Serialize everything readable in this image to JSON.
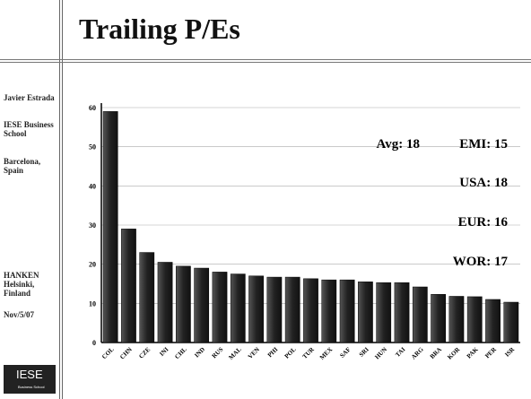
{
  "title": "Trailing P/Es",
  "sidebar": {
    "author": "Javier Estrada",
    "school": "IESE Business School",
    "city": "Barcelona, Spain",
    "visit": "HANKEN Helsinki, Finland",
    "date": "Nov/5/07"
  },
  "logo": {
    "name": "IESE",
    "subtitle": "Business School"
  },
  "chart_data": {
    "type": "bar",
    "categories": [
      "COL",
      "CHN",
      "CZE",
      "INI",
      "CHL",
      "IND",
      "RUS",
      "MAL",
      "VEN",
      "PHI",
      "POL",
      "TUR",
      "MEX",
      "SAF",
      "SRI",
      "HUN",
      "TAI",
      "ARG",
      "BRA",
      "KOR",
      "PAK",
      "PER",
      "ISR"
    ],
    "values": [
      59,
      29,
      23,
      20.5,
      19.5,
      19,
      18,
      17.5,
      17,
      16.7,
      16.7,
      16.3,
      16,
      16,
      15.5,
      15.3,
      15.3,
      14.2,
      12.3,
      11.8,
      11.7,
      11,
      10.3
    ],
    "color": "#333333",
    "ylim": [
      0,
      60
    ],
    "yticks": [
      0,
      10,
      20,
      30,
      40,
      50,
      60
    ],
    "grid": true,
    "annotations": [
      "Avg: 18",
      "EMI: 15",
      "USA: 18",
      "EUR: 16",
      "WOR: 17"
    ]
  }
}
